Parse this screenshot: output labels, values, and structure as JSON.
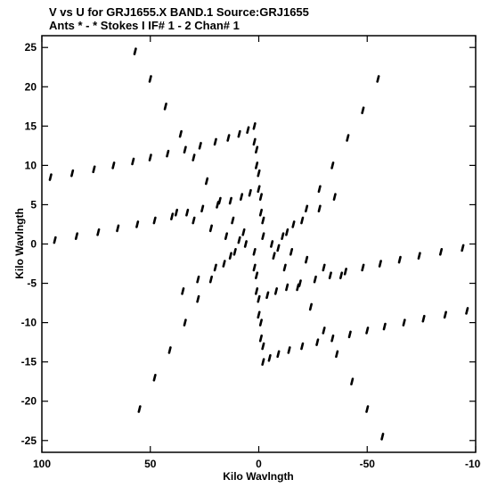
{
  "chart_data": {
    "type": "scatter",
    "title_line1": "V vs U for GRJ1655.X BAND.1   Source:GRJ1655",
    "title_line2": "Ants * - *    Stokes I  IF# 1 - 2  Chan# 1",
    "xlabel": "Kilo Wavlngth",
    "ylabel": "Kilo Wavlngth",
    "xlim": [
      100,
      -100
    ],
    "ylim": [
      -26.5,
      26.5
    ],
    "xticks": [
      100,
      50,
      0,
      -50,
      -100
    ],
    "xtick_labels": [
      "100",
      "50",
      "0",
      "-50",
      "-100"
    ],
    "yticks": [
      25,
      20,
      15,
      10,
      5,
      0,
      -5,
      -10,
      -15,
      -20,
      -25
    ],
    "ytick_labels": [
      "25",
      "20",
      "15",
      "10",
      "5",
      "0",
      "-5",
      "-10",
      "-15",
      "-20",
      "-25"
    ],
    "grid": false,
    "legend": "none",
    "marker_color": "#000000",
    "series": [
      {
        "x": [
          96,
          86,
          76,
          67,
          58,
          50,
          42,
          34,
          27,
          20,
          14,
          9,
          5,
          -96,
          -86,
          -76,
          -67,
          -58,
          -50,
          -42,
          -34,
          -27,
          -20,
          -14,
          -9,
          -5,
          94,
          84,
          74,
          65,
          56,
          48,
          40,
          33,
          26,
          19,
          13,
          8,
          4,
          -94,
          -84,
          -74,
          -65,
          -56,
          -48,
          -40,
          -33,
          -26,
          -19,
          -13,
          -8,
          -4,
          55,
          48,
          41,
          34,
          28,
          22,
          16,
          11,
          6,
          -55,
          -48,
          -41,
          -34,
          -28,
          -22,
          -16,
          -11,
          -6,
          57,
          50,
          43,
          36,
          30,
          24,
          18,
          12,
          7,
          -57,
          -50,
          -43,
          -36,
          -30,
          -24,
          -18,
          -12,
          -7,
          2,
          1,
          0,
          -1,
          -2,
          2,
          1,
          0,
          -1,
          -2,
          2,
          1,
          0,
          -1,
          -2,
          2,
          1,
          0,
          -1,
          -2,
          38,
          30,
          22,
          15,
          9,
          -38,
          -30,
          -22,
          -15,
          -9,
          35,
          28,
          20,
          13,
          -35,
          -28,
          -20,
          -13
        ],
        "y": [
          8.5,
          9,
          9.5,
          10,
          10.5,
          11,
          11.5,
          12,
          12.5,
          13,
          13.5,
          14,
          14.5,
          -8.5,
          -9,
          -9.5,
          -10,
          -10.5,
          -11,
          -11.5,
          -12,
          -12.5,
          -13,
          -13.5,
          -14,
          -14.5,
          0.5,
          1,
          1.5,
          2,
          2.5,
          3,
          3.5,
          4,
          4.5,
          5,
          5.5,
          6,
          6.5,
          -0.5,
          -1,
          -1.5,
          -2,
          -2.5,
          -3,
          -3.5,
          -4,
          -4.5,
          -5,
          -5.5,
          -6,
          -6.5,
          -21,
          -17,
          -13.5,
          -10,
          -7,
          -4.5,
          -2.5,
          -1,
          0,
          21,
          17,
          13.5,
          10,
          7,
          4.5,
          2.5,
          1,
          0,
          24.5,
          21,
          17.5,
          14,
          11,
          8,
          5.5,
          3,
          1.5,
          -24.5,
          -21,
          -17.5,
          -14,
          -11,
          -8,
          -5.5,
          -3,
          -1.5,
          15,
          12,
          9,
          6,
          3,
          -3,
          -6,
          -9,
          -12,
          -15,
          13,
          10,
          7,
          4,
          1,
          -1,
          -4,
          -7,
          -10,
          -13,
          4,
          3,
          2,
          1,
          0.5,
          -4,
          -3,
          -2,
          -1,
          -0.5,
          -6,
          -4.5,
          -3,
          -1.5,
          6,
          4.5,
          3,
          1.5
        ]
      }
    ]
  }
}
